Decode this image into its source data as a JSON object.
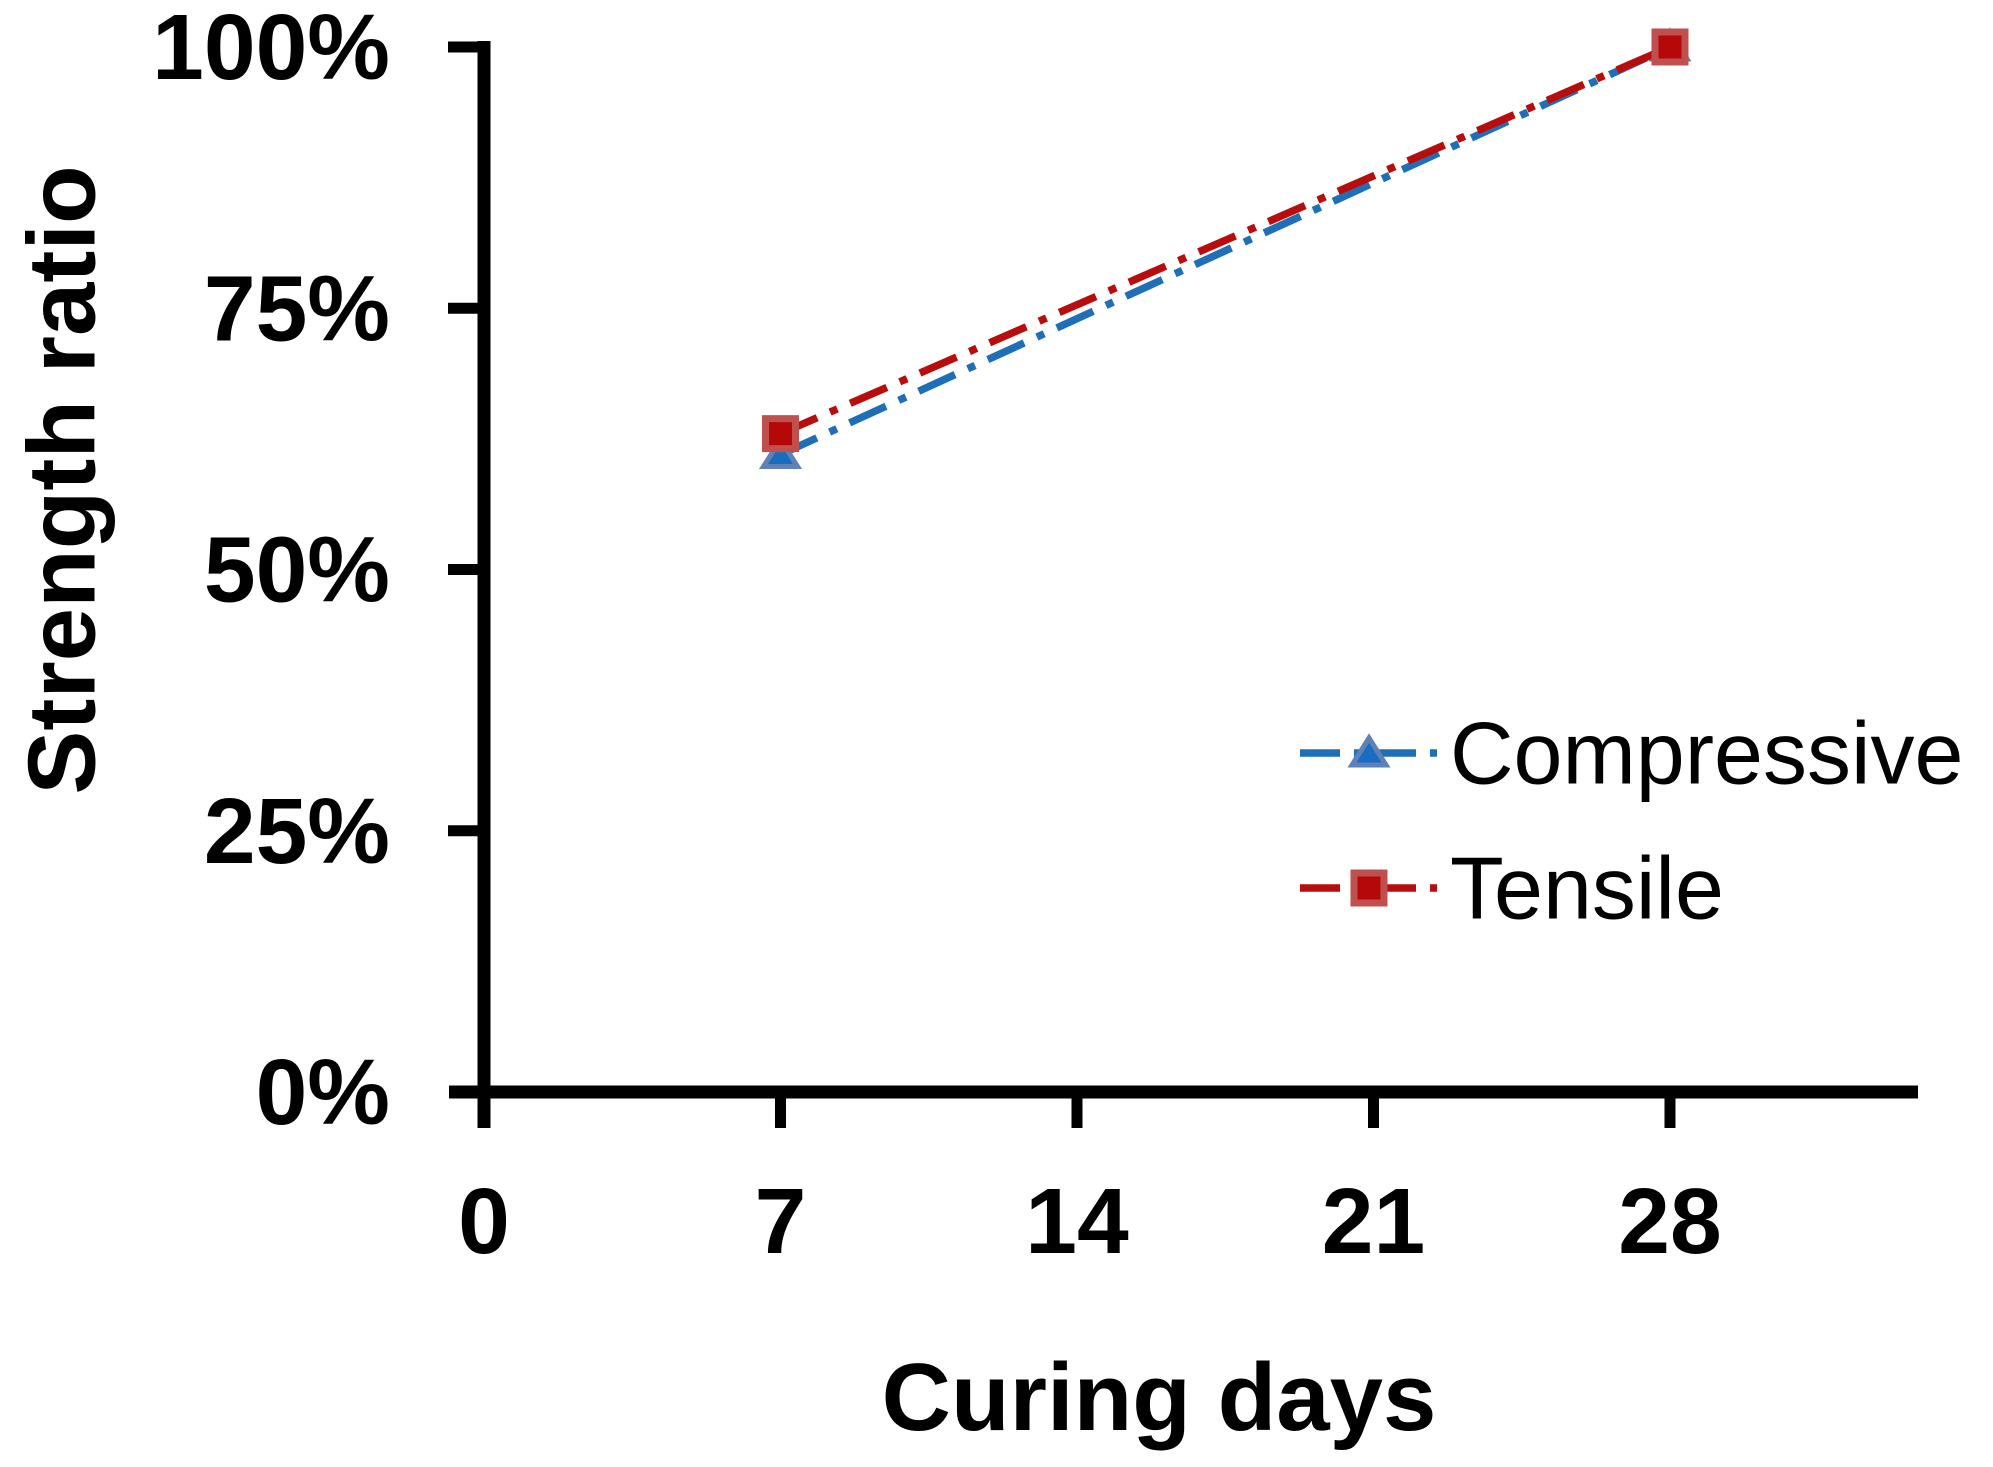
{
  "chart_data": {
    "type": "line",
    "title": "",
    "xlabel": "Curing days",
    "ylabel": "Strength ratio",
    "x": [
      7,
      28
    ],
    "series": [
      {
        "name": "Compressive",
        "values": [
          61,
          100
        ],
        "line_color": "#1F6FB8",
        "line_style": "dash-dot",
        "marker": "triangle",
        "marker_fill": "#1A6CC0",
        "marker_stroke": "#5E82B8"
      },
      {
        "name": "Tensile",
        "values": [
          63,
          100
        ],
        "line_color": "#B80D0D",
        "line_style": "dash-dot",
        "marker": "square",
        "marker_fill": "#B50808",
        "marker_stroke": "#C0504D"
      }
    ],
    "x_ticks": {
      "labels": [
        "0",
        "7",
        "14",
        "21",
        "28"
      ],
      "values": [
        0,
        7,
        14,
        21,
        28
      ]
    },
    "y_ticks": {
      "labels": [
        "0%",
        "25%",
        "50%",
        "75%",
        "100%"
      ],
      "values": [
        0,
        25,
        50,
        75,
        100
      ]
    },
    "xlim": [
      0,
      33.9
    ],
    "ylim": [
      0,
      100
    ],
    "grid": false,
    "legend_position": "inside-lower-right",
    "axis_color": "#000000",
    "background_color": "#FFFFFF"
  }
}
